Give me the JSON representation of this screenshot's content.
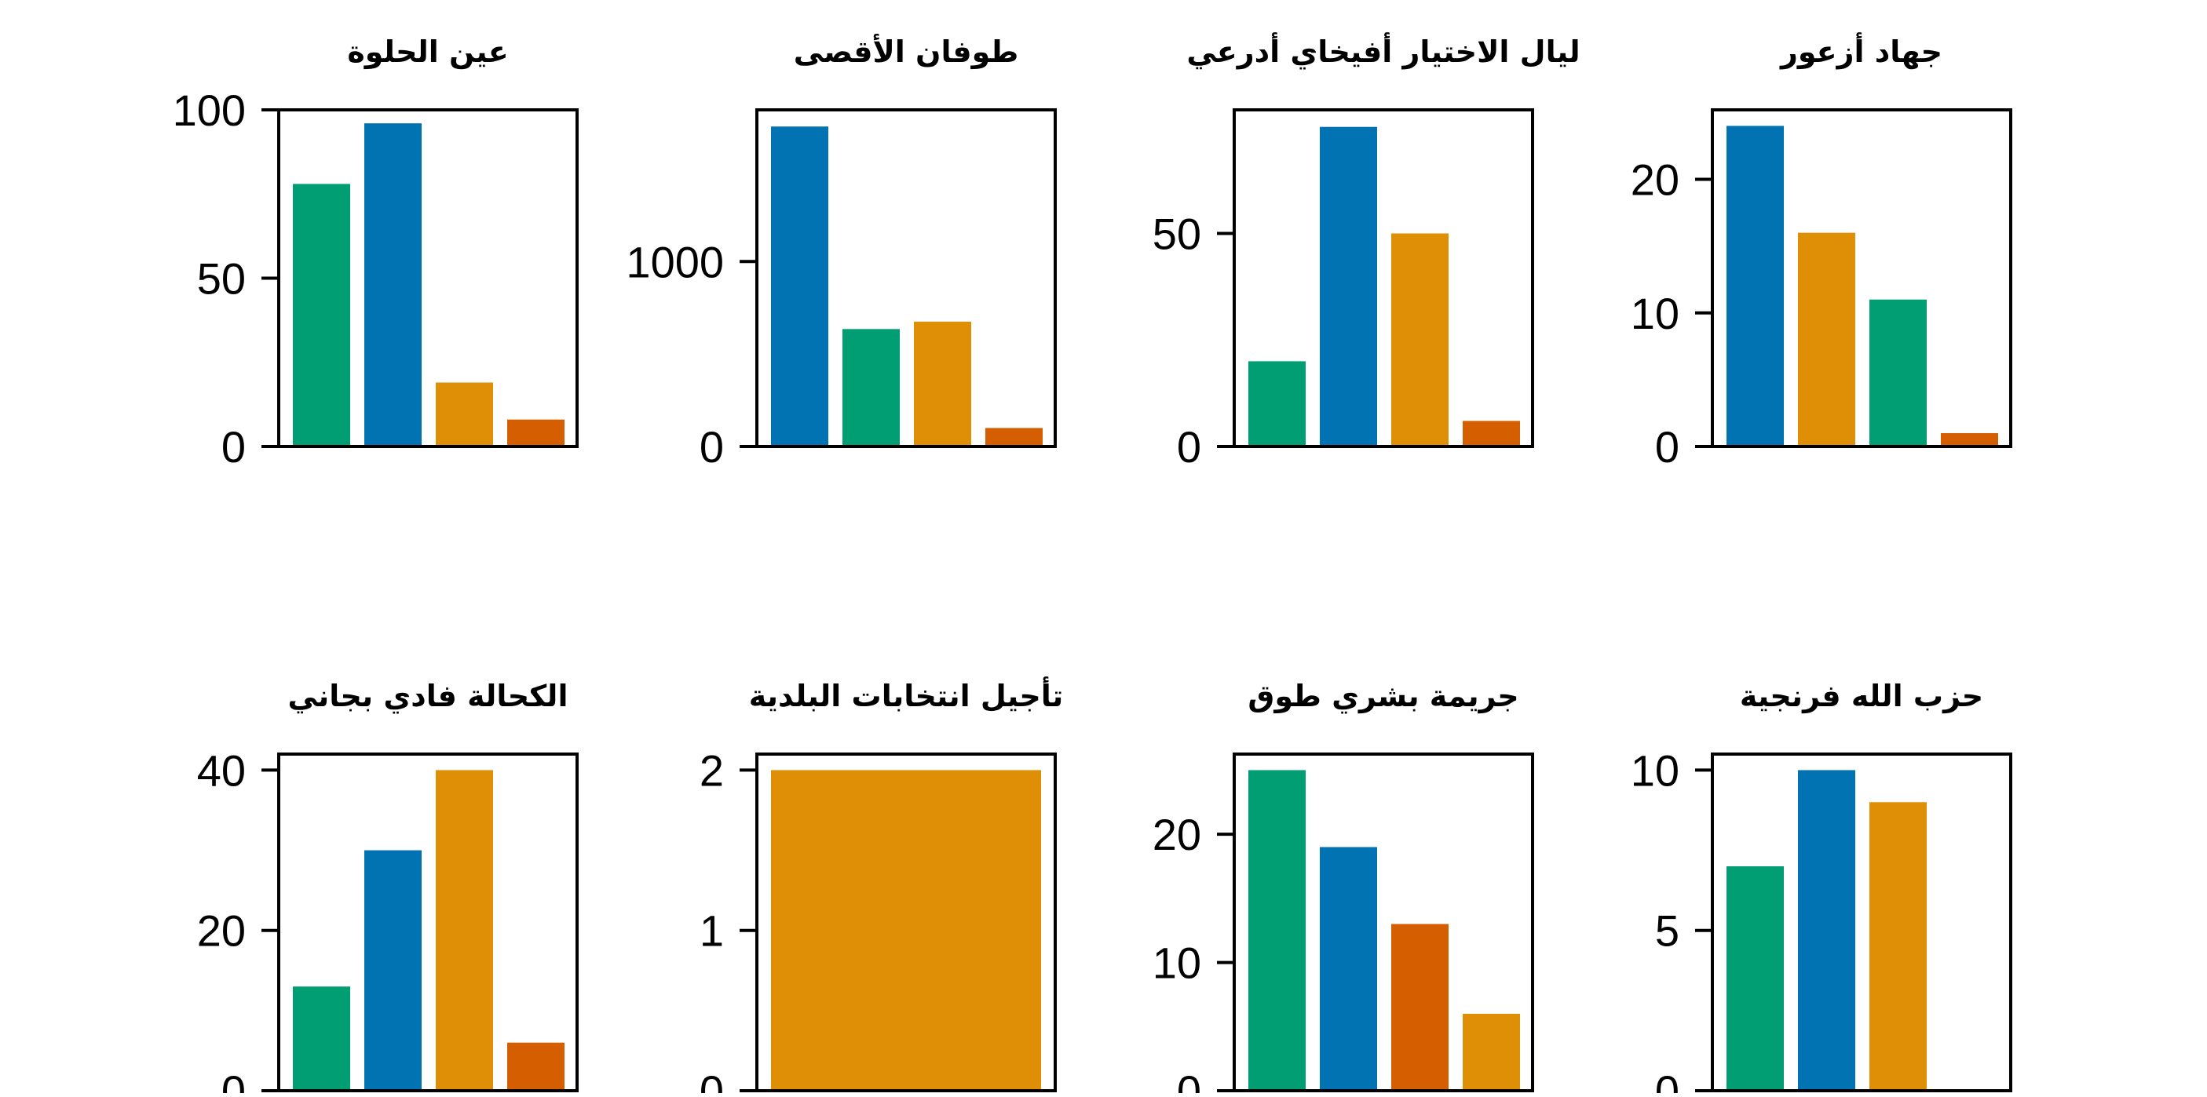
{
  "colors": {
    "green": "#029e73",
    "blue": "#0173b2",
    "orange": "#de8f05",
    "red": "#d55e00"
  },
  "chart_data": [
    {
      "type": "bar",
      "title": "عين الحلوة",
      "ylim": [
        0,
        100
      ],
      "yticks": [
        0,
        50,
        100
      ],
      "bars": [
        {
          "value": 78,
          "color": "green"
        },
        {
          "value": 96,
          "color": "blue"
        },
        {
          "value": 19,
          "color": "orange"
        },
        {
          "value": 8,
          "color": "red"
        }
      ]
    },
    {
      "type": "bar",
      "title": "طوفان الأقصى",
      "ylim": [
        0,
        1820
      ],
      "yticks": [
        0,
        1000
      ],
      "bars": [
        {
          "value": 1730,
          "color": "blue"
        },
        {
          "value": 635,
          "color": "green"
        },
        {
          "value": 675,
          "color": "orange"
        },
        {
          "value": 100,
          "color": "red"
        }
      ]
    },
    {
      "type": "bar",
      "title": "ليال الاختيار أفيخاي أدرعي",
      "ylim": [
        0,
        79
      ],
      "yticks": [
        0,
        50
      ],
      "bars": [
        {
          "value": 20,
          "color": "green"
        },
        {
          "value": 75,
          "color": "blue"
        },
        {
          "value": 50,
          "color": "orange"
        },
        {
          "value": 6,
          "color": "red"
        }
      ]
    },
    {
      "type": "bar",
      "title": "جهاد أزعور",
      "ylim": [
        0,
        25.2
      ],
      "yticks": [
        0,
        10,
        20
      ],
      "bars": [
        {
          "value": 24,
          "color": "blue"
        },
        {
          "value": 16,
          "color": "orange"
        },
        {
          "value": 11,
          "color": "green"
        },
        {
          "value": 1,
          "color": "red"
        }
      ]
    },
    {
      "type": "bar",
      "title": "الكحالة فادي بجاني",
      "ylim": [
        0,
        42
      ],
      "yticks": [
        0,
        20,
        40
      ],
      "bars": [
        {
          "value": 13,
          "color": "green"
        },
        {
          "value": 30,
          "color": "blue"
        },
        {
          "value": 40,
          "color": "orange"
        },
        {
          "value": 6,
          "color": "red"
        }
      ]
    },
    {
      "type": "bar",
      "title": "تأجيل انتخابات البلدية",
      "ylim": [
        0,
        2.1
      ],
      "yticks": [
        0,
        1,
        2
      ],
      "bars": [
        {
          "value": 2,
          "color": "orange"
        }
      ]
    },
    {
      "type": "bar",
      "title": "جريمة بشري طوق",
      "ylim": [
        0,
        26.25
      ],
      "yticks": [
        0,
        10,
        20
      ],
      "bars": [
        {
          "value": 25,
          "color": "green"
        },
        {
          "value": 19,
          "color": "blue"
        },
        {
          "value": 13,
          "color": "red"
        },
        {
          "value": 6,
          "color": "orange"
        }
      ]
    },
    {
      "type": "bar",
      "title": "حزب الله فرنجية",
      "ylim": [
        0,
        10.5
      ],
      "yticks": [
        0,
        5,
        10
      ],
      "bars": [
        {
          "value": 7,
          "color": "green"
        },
        {
          "value": 10,
          "color": "blue"
        },
        {
          "value": 9,
          "color": "orange"
        }
      ]
    }
  ]
}
